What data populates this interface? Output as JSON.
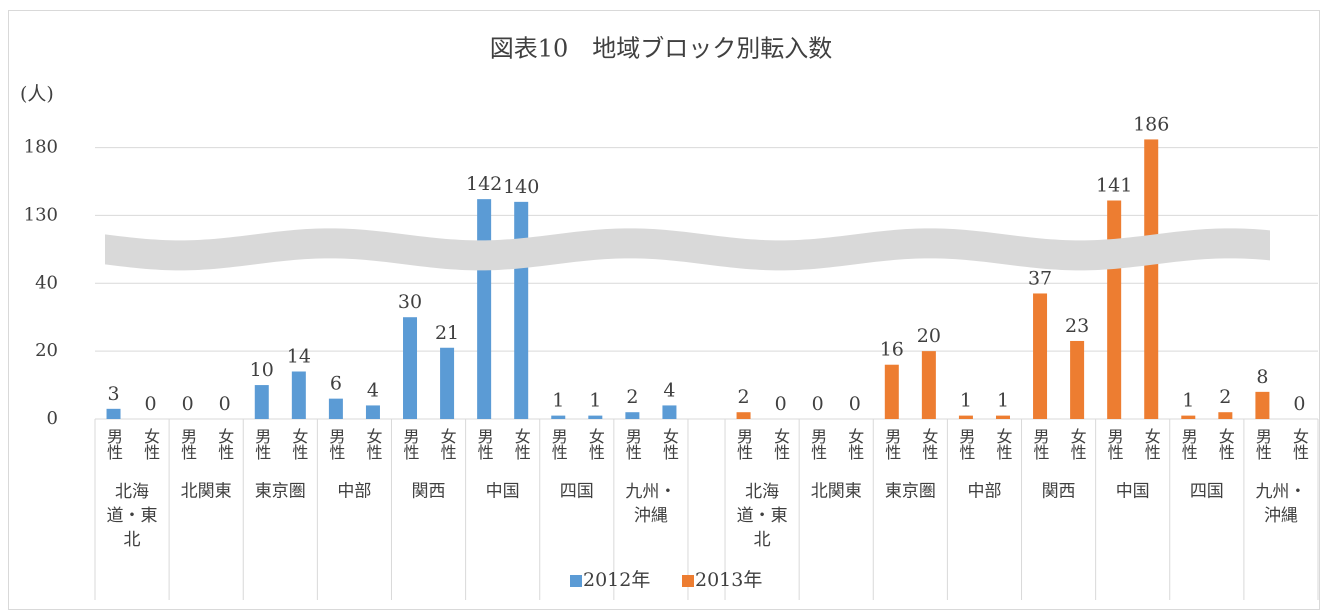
{
  "chart_data": {
    "type": "bar",
    "title": "図表10　地域ブロック別転入数",
    "y_label": "(人)",
    "categories": [
      "男性",
      "女性",
      "男性",
      "女性",
      "男性",
      "女性",
      "男性",
      "女性",
      "男性",
      "女性",
      "男性",
      "女性",
      "男性",
      "女性",
      "男性",
      "女性"
    ],
    "groups": [
      "北海道・東北",
      "北関東",
      "東京圏",
      "中部",
      "関西",
      "中国",
      "四国",
      "九州・沖縄"
    ],
    "series": [
      {
        "name": "2012年",
        "color": "#5b9bd5",
        "values": [
          3,
          0,
          0,
          0,
          10,
          14,
          6,
          4,
          30,
          21,
          142,
          140,
          1,
          1,
          2,
          4
        ]
      },
      {
        "name": "2013年",
        "color": "#ed7d31",
        "values": [
          2,
          0,
          0,
          0,
          16,
          20,
          1,
          1,
          37,
          23,
          141,
          186,
          1,
          2,
          8,
          0
        ]
      }
    ],
    "ylim": [
      0,
      190
    ],
    "yticks": [
      0,
      20,
      40,
      130,
      180
    ],
    "axis_break": true,
    "grid": true,
    "legend": "bottom"
  }
}
